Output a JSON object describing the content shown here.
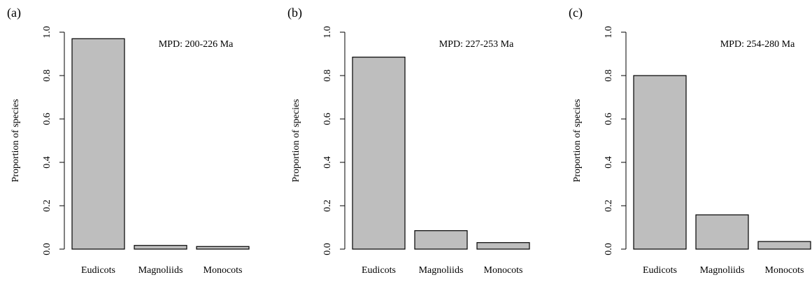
{
  "chart_data": [
    {
      "type": "bar",
      "panel_label": "(a)",
      "annotation": "MPD: 200-226 Ma",
      "y_label": "Proportion of species",
      "categories": [
        "Eudicots",
        "Magnoliids",
        "Monocots"
      ],
      "values": [
        0.97,
        0.017,
        0.012
      ],
      "color": "#bebebe",
      "ylim": [
        0,
        1
      ],
      "yticks": [
        {
          "value": 0,
          "label": "0.0"
        },
        0.2,
        0.4,
        0.6,
        0.8,
        {
          "value": 1,
          "label": "1.0"
        }
      ]
    },
    {
      "type": "bar",
      "panel_label": "(b)",
      "annotation": "MPD: 227-253 Ma",
      "y_label": "Proportion of species",
      "categories": [
        "Eudicots",
        "Magnoliids",
        "Monocots"
      ],
      "values": [
        0.885,
        0.085,
        0.03
      ],
      "color": "#bebebe",
      "ylim": [
        0,
        1
      ],
      "yticks": [
        {
          "value": 0,
          "label": "0.0"
        },
        0.2,
        0.4,
        0.6,
        0.8,
        {
          "value": 1,
          "label": "1.0"
        }
      ]
    },
    {
      "type": "bar",
      "panel_label": "(c)",
      "annotation": "MPD: 254-280 Ma",
      "y_label": "Proportion of species",
      "categories": [
        "Eudicots",
        "Magnoliids",
        "Monocots"
      ],
      "values": [
        0.8,
        0.158,
        0.035
      ],
      "color": "#bebebe",
      "ylim": [
        0,
        1
      ],
      "yticks": [
        {
          "value": 0,
          "label": "0.0"
        },
        0.2,
        0.4,
        0.6,
        0.8,
        {
          "value": 1,
          "label": "1.0"
        }
      ]
    }
  ]
}
